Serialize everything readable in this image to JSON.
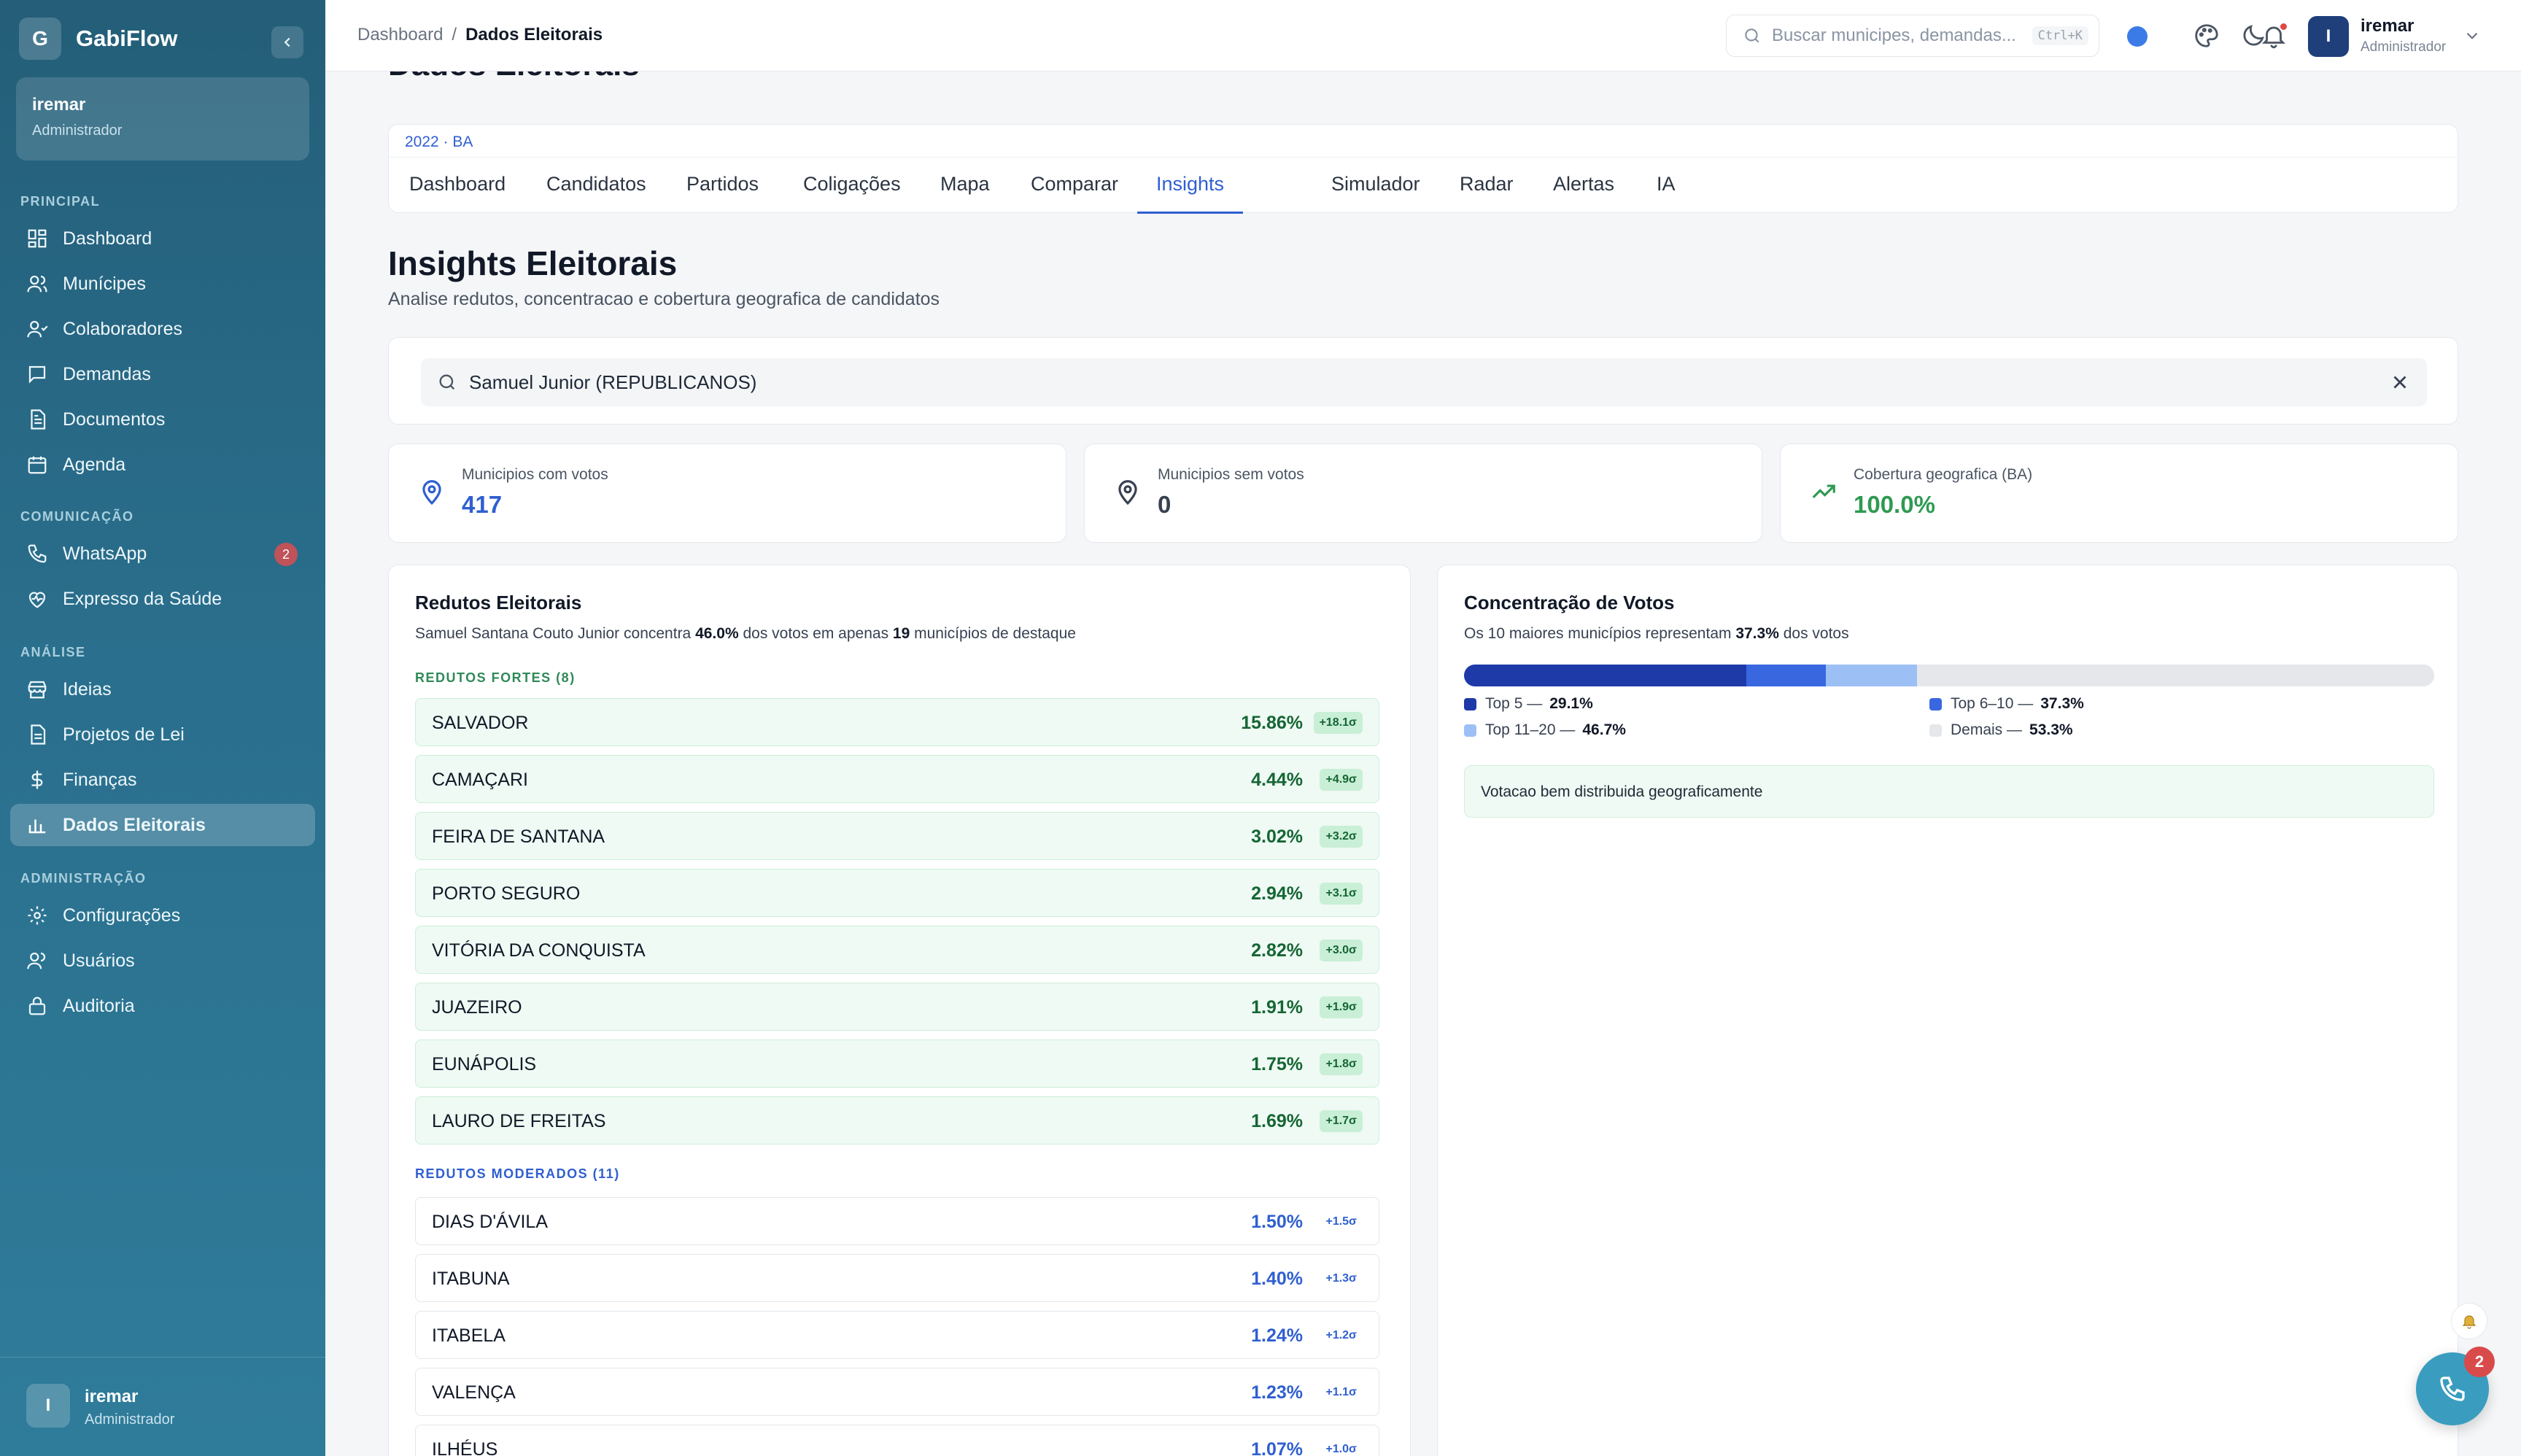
{
  "sidebar": {
    "app_name": "GabiFlow",
    "logo_letter": "G",
    "user": {
      "name": "iremar",
      "role": "Administrador"
    },
    "sections": {
      "principal": "PRINCIPAL",
      "comunicacao": "COMUNICAÇÃO",
      "analise": "ANÁLISE",
      "administracao": "ADMINISTRAÇÃO"
    },
    "items": {
      "dashboard": "Dashboard",
      "municipes": "Munícipes",
      "colaboradores": "Colaboradores",
      "demandas": "Demandas",
      "documentos": "Documentos",
      "agenda": "Agenda",
      "whatsapp": "WhatsApp",
      "whatsapp_badge": "2",
      "expresso": "Expresso da Saúde",
      "ideias": "Ideias",
      "projetos": "Projetos de Lei",
      "financas": "Finanças",
      "dados": "Dados Eleitorais",
      "configuracoes": "Configurações",
      "usuarios": "Usuários",
      "auditoria": "Auditoria"
    },
    "footer": {
      "avatar": "I",
      "name": "iremar",
      "role": "Administrador"
    }
  },
  "topbar": {
    "breadcrumb": {
      "root": "Dashboard",
      "separator": "/",
      "current": "Dados Eleitorais"
    },
    "search_placeholder": "Buscar municipes, demandas...",
    "shortcut": "Ctrl+K",
    "user": {
      "avatar": "I",
      "name": "iremar",
      "role": "Administrador"
    },
    "accent_color": "#3b7be8"
  },
  "main": {
    "ghost_title": "Dados Eleitorais",
    "context": "2022 · BA",
    "tabs": {
      "t0": "Dashboard",
      "t1": "Candidatos",
      "t2": "Partidos",
      "t3": "Coligações",
      "t4": "Mapa",
      "t5": "Comparar",
      "t6": "Insights",
      "t7": "Simulador",
      "t8": "Radar",
      "t9": "Alertas",
      "t10": "IA"
    },
    "active_tab": "Insights",
    "title": "Insights Eleitorais",
    "subtitle": "Analise redutos, concentracao e cobertura geografica de candidatos",
    "candidate": "Samuel Junior (REPUBLICANOS)",
    "stats": {
      "com_votos": {
        "label": "Municipios com votos",
        "value": "417"
      },
      "sem_votos": {
        "label": "Municipios sem votos",
        "value": "0"
      },
      "cobertura": {
        "label": "Cobertura geografica (BA)",
        "value": "100.0%"
      }
    },
    "redutos": {
      "title": "Redutos Eleitorais",
      "desc_a": "Samuel Santana Couto Junior concentra ",
      "desc_pct": "46.0%",
      "desc_b": " dos votos em apenas ",
      "desc_n": "19",
      "desc_c": " municípios de destaque",
      "strong_label": "REDUTOS FORTES (8)",
      "strong": [
        {
          "name": "SALVADOR",
          "pct": "15.86%",
          "sigma": "+18.1σ"
        },
        {
          "name": "CAMAÇARI",
          "pct": "4.44%",
          "sigma": "+4.9σ"
        },
        {
          "name": "FEIRA DE SANTANA",
          "pct": "3.02%",
          "sigma": "+3.2σ"
        },
        {
          "name": "PORTO SEGURO",
          "pct": "2.94%",
          "sigma": "+3.1σ"
        },
        {
          "name": "VITÓRIA DA CONQUISTA",
          "pct": "2.82%",
          "sigma": "+3.0σ"
        },
        {
          "name": "JUAZEIRO",
          "pct": "1.91%",
          "sigma": "+1.9σ"
        },
        {
          "name": "EUNÁPOLIS",
          "pct": "1.75%",
          "sigma": "+1.8σ"
        },
        {
          "name": "LAURO DE FREITAS",
          "pct": "1.69%",
          "sigma": "+1.7σ"
        }
      ],
      "moderate_label": "REDUTOS MODERADOS (11)",
      "moderate": [
        {
          "name": "DIAS D'ÁVILA",
          "pct": "1.50%",
          "sigma": "+1.5σ"
        },
        {
          "name": "ITABUNA",
          "pct": "1.40%",
          "sigma": "+1.3σ"
        },
        {
          "name": "ITABELA",
          "pct": "1.24%",
          "sigma": "+1.2σ"
        },
        {
          "name": "VALENÇA",
          "pct": "1.23%",
          "sigma": "+1.1σ"
        },
        {
          "name": "ILHÉUS",
          "pct": "1.07%",
          "sigma": "+1.0σ"
        }
      ]
    },
    "concentracao": {
      "title": "Concentração de Votos",
      "desc_a": "Os 10 maiores municípios representam ",
      "desc_pct": "37.3%",
      "desc_b": " dos votos",
      "segments": [
        {
          "label": "Top 5 —",
          "value": "29.1%",
          "color": "#1e3aa8",
          "share": 29.1
        },
        {
          "label": "Top 6–10 —",
          "value": "37.3%",
          "color": "#3867e0",
          "share": 8.2
        },
        {
          "label": "Top 11–20 —",
          "value": "46.7%",
          "color": "#9cc0f5",
          "share": 9.4
        },
        {
          "label": "Demais —",
          "value": "53.3%",
          "color": "#e5e7eb",
          "share": 53.3
        }
      ],
      "note": "Votacao bem distribuida geograficamente"
    }
  },
  "floating": {
    "call_badge": "2"
  }
}
